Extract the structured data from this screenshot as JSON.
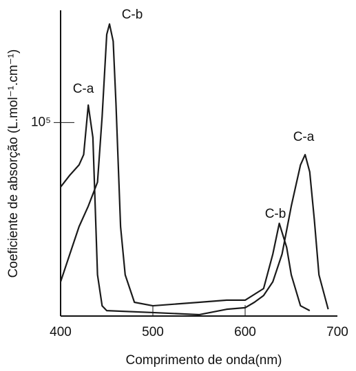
{
  "chart_data": {
    "type": "line",
    "x_label": "Comprimento de onda(nm)",
    "y_label": "Coeficiente de absorção (L.mol⁻¹.cm⁻¹)",
    "xlim": [
      400,
      700
    ],
    "xticks": [
      400,
      500,
      600,
      700
    ],
    "ylim": [
      0,
      158000
    ],
    "yticks": [
      {
        "value": 100000,
        "label": "10⁵"
      }
    ],
    "series": [
      {
        "name": "C-a",
        "color": "#1a1a1a",
        "x": [
          400,
          410,
          420,
          425,
          430,
          435,
          440,
          445,
          450,
          500,
          550,
          580,
          600,
          610,
          620,
          630,
          640,
          650,
          655,
          660,
          665,
          670,
          675,
          680,
          690
        ],
        "values": [
          66700,
          72800,
          78100,
          83400,
          109000,
          92300,
          21300,
          5300,
          2800,
          1800,
          700,
          3500,
          4300,
          7100,
          10600,
          17700,
          32000,
          56800,
          67500,
          78100,
          83400,
          74500,
          49700,
          21300,
          3500
        ]
      },
      {
        "name": "C-b",
        "color": "#1a1a1a",
        "x": [
          400,
          410,
          420,
          430,
          440,
          445,
          450,
          453,
          457,
          460,
          465,
          470,
          480,
          500,
          550,
          580,
          600,
          620,
          630,
          637,
          645,
          650,
          660,
          670
        ],
        "values": [
          17700,
          32000,
          46200,
          56800,
          69200,
          103000,
          145500,
          150900,
          142000,
          110000,
          46200,
          21300,
          7100,
          5300,
          7100,
          8200,
          8200,
          14200,
          32000,
          47900,
          35500,
          21300,
          5300,
          2800
        ]
      }
    ]
  }
}
